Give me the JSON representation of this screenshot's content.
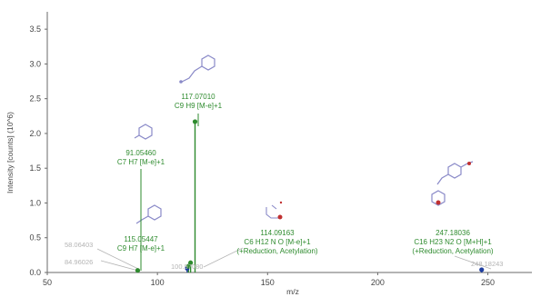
{
  "chart_data": {
    "type": "scatter",
    "title": "",
    "xlabel": "m/z",
    "ylabel": "Intensity [counts] (10^6)",
    "xlim": [
      50,
      270
    ],
    "ylim": [
      0,
      3.75
    ],
    "x_ticks": [
      "50",
      "100",
      "150",
      "200",
      "250"
    ],
    "y_ticks": [
      "0.0",
      "0.5",
      "1.0",
      "1.5",
      "2.0",
      "2.5",
      "3.0",
      "3.5"
    ],
    "grid": false,
    "series": [
      {
        "points": [
          {
            "x": 91.0546,
            "y": 0.03,
            "color": "#2e8b2e"
          },
          {
            "x": 113.5,
            "y": 0.06,
            "color": "#1f3fa0"
          },
          {
            "x": 114.0916,
            "y": 0.09,
            "color": "#2e8b2e"
          },
          {
            "x": 115.0545,
            "y": 0.14,
            "color": "#2e8b2e"
          },
          {
            "x": 117.0701,
            "y": 2.17,
            "color": "#2e8b2e"
          },
          {
            "x": 247.1804,
            "y": 0.04,
            "color": "#1f3fa0"
          }
        ]
      }
    ],
    "annotations": [
      {
        "lines": [
          "117.07010",
          "C9 H9 [M-e]+1"
        ],
        "color": "#2e8b2e"
      },
      {
        "lines": [
          "91.05460",
          "C7 H7 [M-e]+1"
        ],
        "color": "#2e8b2e"
      },
      {
        "lines": [
          "115.05447",
          "C9 H7 [M-e]+1"
        ],
        "color": "#2e8b2e"
      },
      {
        "lines": [
          "114.09163",
          "C6 H12 N O [M-e]+1",
          "(+Reduction, Acetylation)"
        ],
        "color": "#2e8b2e"
      },
      {
        "lines": [
          "247.18036",
          "C16 H23 N2 O [M+H]+1",
          "(+Reduction, Acetylation)"
        ],
        "color": "#2e8b2e"
      },
      {
        "lines": [
          "58.06403"
        ],
        "color": "#b4b4b4"
      },
      {
        "lines": [
          "84.96026"
        ],
        "color": "#b4b4b4"
      },
      {
        "lines": [
          "100.97080"
        ],
        "color": "#b4b4b4"
      },
      {
        "lines": [
          "248.18243"
        ],
        "color": "#b4b4b4"
      }
    ]
  },
  "colors": {
    "axis": "#6a6a6a",
    "peak": "#2e8b2e",
    "marker_blue": "#1f3fa0",
    "leader_grey": "#b4b4b4",
    "structure": "#8a8ac8",
    "heteroatom": "#c03030"
  }
}
